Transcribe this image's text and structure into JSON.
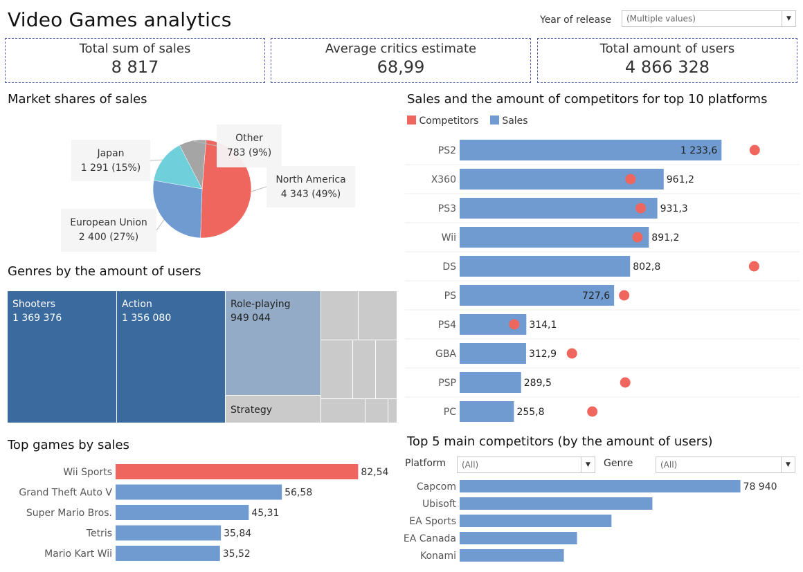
{
  "header": {
    "title": "Video Games analytics"
  },
  "year_filter": {
    "label": "Year of release",
    "value": "(Multiple values)"
  },
  "kpis": [
    {
      "label": "Total sum of sales",
      "value": "8 817"
    },
    {
      "label": "Average critics estimate",
      "value": "68,99"
    },
    {
      "label": "Total amount of users",
      "value": "4 866 328"
    }
  ],
  "market_shares": {
    "title": "Market shares of sales",
    "chart_data": {
      "type": "pie",
      "slices": [
        {
          "name": "North America",
          "value": 4343,
          "label": "4 343 (49%)",
          "color": "#ef665e"
        },
        {
          "name": "European Union",
          "value": 2400,
          "label": "2 400 (27%)",
          "color": "#6f9bd0"
        },
        {
          "name": "Japan",
          "value": 1291,
          "label": "1 291 (15%)",
          "color": "#6fd0dc"
        },
        {
          "name": "Other",
          "value": 783,
          "label": "783 (9%)",
          "color": "#a5a5a5"
        }
      ]
    }
  },
  "genres": {
    "title": "Genres by the amount of users",
    "chart_data": {
      "type": "treemap",
      "items": [
        {
          "name": "Shooters",
          "value": 1369376,
          "label": "1 369 376",
          "color": "#3a6a9e"
        },
        {
          "name": "Action",
          "value": 1356080,
          "label": "1 356 080",
          "color": "#3a6a9e"
        },
        {
          "name": "Role-playing",
          "value": 949044,
          "label": "949 044",
          "color": "#93abc6"
        },
        {
          "name": "Strategy",
          "value": null,
          "label": "",
          "color": "#cacaca"
        }
      ]
    }
  },
  "top_games": {
    "title": "Top games by sales",
    "chart_data": {
      "type": "bar",
      "orientation": "horizontal",
      "categories": [
        "Wii Sports",
        "Grand Theft Auto V",
        "Super Mario Bros.",
        "Tetris",
        "Mario Kart Wii"
      ],
      "values": [
        82.54,
        56.58,
        45.31,
        35.84,
        35.52
      ],
      "labels": [
        "82,54",
        "56,58",
        "45,31",
        "35,84",
        "35,52"
      ],
      "highlight_color": "#ef665e",
      "color": "#6f9bd0",
      "xlim": [
        0,
        90
      ]
    }
  },
  "platforms": {
    "title": "Sales and the amount of competitors for top 10 platforms",
    "legend": [
      {
        "name": "Competitors",
        "color": "#ef665e"
      },
      {
        "name": "Sales",
        "color": "#6f9bd0"
      }
    ],
    "chart_data": {
      "type": "bar",
      "orientation": "horizontal",
      "categories": [
        "PS2",
        "X360",
        "PS3",
        "Wii",
        "DS",
        "PS",
        "PS4",
        "GBA",
        "PSP",
        "PC"
      ],
      "series": [
        {
          "name": "Sales",
          "values": [
            1233.6,
            961.2,
            931.3,
            891.2,
            802.8,
            727.6,
            314.1,
            312.9,
            289.5,
            255.8
          ],
          "labels": [
            "1 233,6",
            "961,2",
            "931,3",
            "891,2",
            "802,8",
            "727,6",
            "314,1",
            "312,9",
            "289,5",
            "255,8"
          ]
        },
        {
          "name": "Competitors",
          "values": [
            1390,
            805,
            853,
            838,
            1387,
            775,
            257,
            529,
            780,
            625
          ]
        }
      ],
      "xlim": [
        0,
        1500
      ]
    }
  },
  "competitors": {
    "title": "Top 5 main competitors (by the amount of users)",
    "platform_filter": {
      "label": "Platform",
      "value": "(All)"
    },
    "genre_filter": {
      "label": "Genre",
      "value": "(All)"
    },
    "chart_data": {
      "type": "bar",
      "orientation": "horizontal",
      "categories": [
        "Capcom",
        "Ubisoft",
        "EA Sports",
        "EA Canada",
        "Konami"
      ],
      "values": [
        78940,
        54200,
        42700,
        33000,
        29300
      ],
      "labels": [
        "78 940",
        "",
        "",
        "",
        ""
      ],
      "color": "#6f9bd0",
      "xlim": [
        0,
        80000
      ]
    }
  }
}
